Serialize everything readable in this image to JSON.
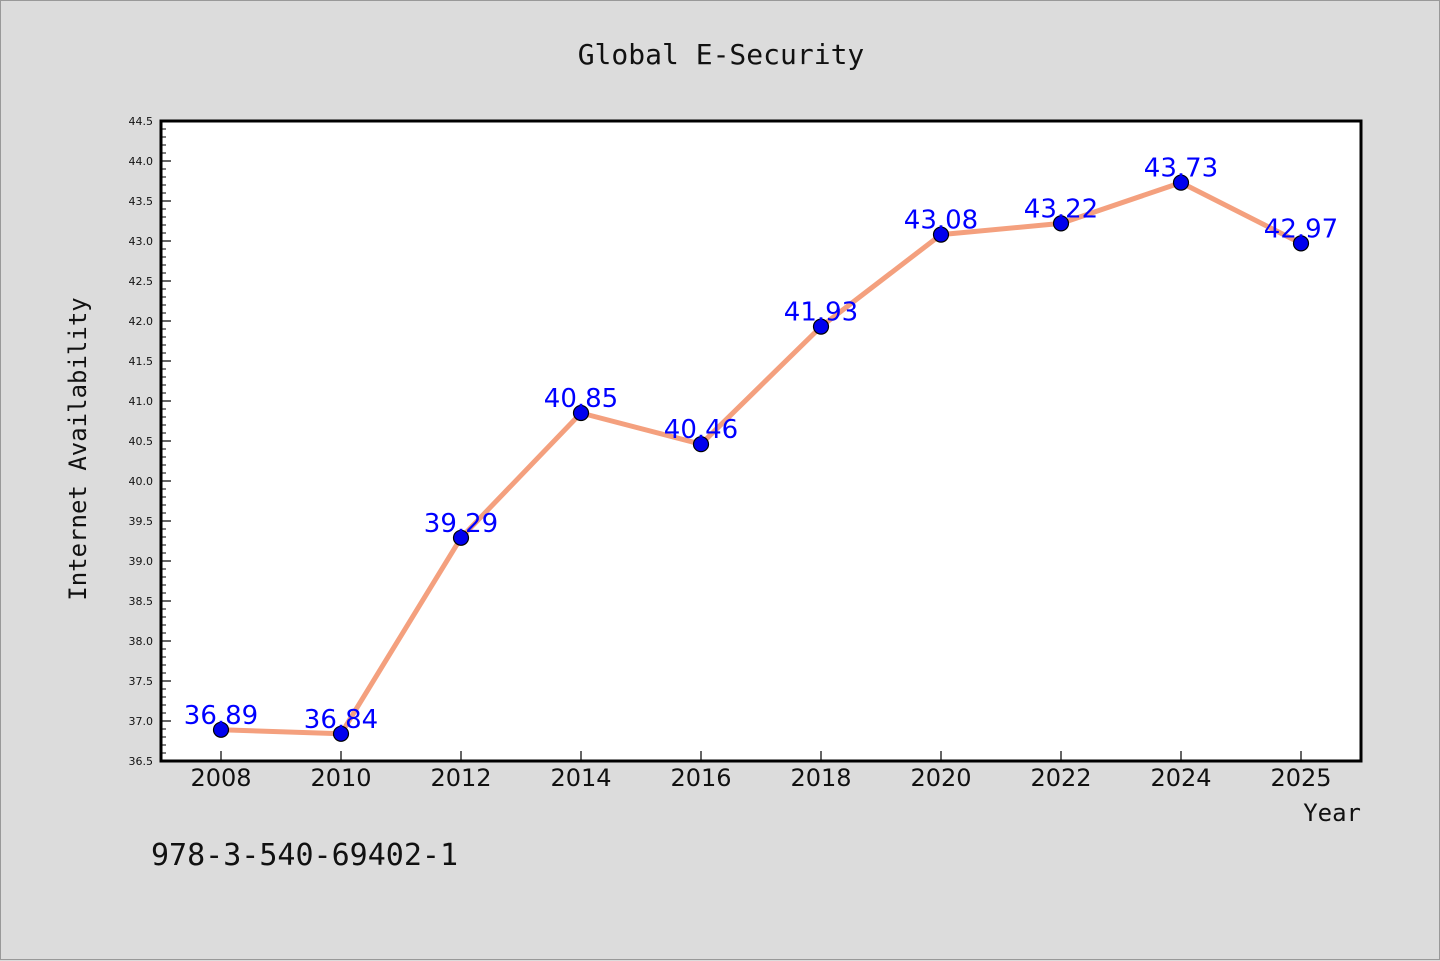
{
  "footer_code": "978-3-540-69402-1",
  "chart_data": {
    "type": "line",
    "title": "Global E-Security",
    "xlabel": "Year",
    "ylabel": "Internet Availability",
    "ylim": [
      36.5,
      44.5
    ],
    "ytick_step": 0.5,
    "categories": [
      "2008",
      "2010",
      "2012",
      "2014",
      "2016",
      "2018",
      "2020",
      "2022",
      "2024",
      "2025"
    ],
    "series": [
      {
        "values": [
          36.89,
          36.84,
          39.29,
          40.85,
          40.46,
          41.93,
          43.08,
          43.22,
          43.73,
          42.97
        ],
        "line_color": "#f4a07e",
        "marker_color": "#0000ee"
      }
    ],
    "data_labels": [
      "36.89",
      "36.84",
      "39.29",
      "40.85",
      "40.46",
      "41.93",
      "43.08",
      "43.22",
      "43.73",
      "42.97"
    ],
    "label_color": "#0000ff",
    "grid": false,
    "legend": "none"
  }
}
